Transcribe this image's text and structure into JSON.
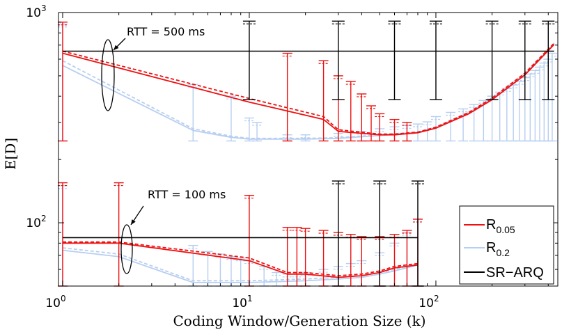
{
  "chart_data": {
    "type": "line",
    "xlabel": "Coding Window/Generation Size (k)",
    "ylabel": "E[D]",
    "xscale": "log",
    "yscale": "log",
    "xlim": [
      0.95,
      450
    ],
    "ylim": [
      50,
      1000
    ],
    "x_ticks": [
      "10^0",
      "10^1",
      "10^2"
    ],
    "y_ticks": [
      "10^2",
      "10^3"
    ],
    "legend": {
      "position": "bottom-right",
      "entries": [
        {
          "name": "R",
          "sub": "0.05",
          "color": "#ee1111"
        },
        {
          "name": "R",
          "sub": "0.2",
          "color": "#b6cef0"
        },
        {
          "name": "SR−ARQ",
          "sub": "",
          "color": "#000000"
        }
      ]
    },
    "annotations": [
      {
        "text": "RTT = 500 ms",
        "points_to_x": 1.7
      },
      {
        "text": "RTT = 100 ms",
        "points_to_x": 2.3
      }
    ],
    "groups": [
      {
        "name": "RTT = 500 ms",
        "floor": 245,
        "series": [
          {
            "name": "R_0.05",
            "color": "#ee1111",
            "style": "solid",
            "x": [
              1,
              10,
              25,
              30,
              50,
              60,
              80,
              100,
              150,
              200,
              300,
              430
            ],
            "y": [
              640,
              375,
              310,
              272,
              262,
              262,
              268,
              282,
              330,
              385,
              505,
              705
            ]
          },
          {
            "name": "R_0.05",
            "color": "#ee1111",
            "style": "dashed",
            "x": [
              1,
              10,
              25,
              30,
              50,
              60,
              80,
              100,
              150,
              200,
              300,
              430
            ],
            "y": [
              655,
              390,
              320,
              277,
              264,
              264,
              270,
              285,
              335,
              392,
              515,
              715
            ]
          },
          {
            "name": "R_0.2",
            "color": "#b6cef0",
            "style": "solid",
            "x": [
              1,
              5,
              8,
              10,
              20,
              30,
              50,
              80,
              100,
              150,
              200,
              300,
              430
            ],
            "y": [
              560,
              275,
              255,
              250,
              250,
              252,
              260,
              268,
              282,
              330,
              385,
              505,
              705
            ]
          },
          {
            "name": "R_0.2",
            "color": "#b6cef0",
            "style": "dashed",
            "x": [
              1,
              5,
              8,
              10,
              20,
              30,
              50,
              80,
              100,
              150,
              200,
              300,
              430
            ],
            "y": [
              590,
              280,
              258,
              252,
              252,
              254,
              262,
              270,
              285,
              335,
              392,
              515,
              715
            ]
          },
          {
            "name": "SR-ARQ",
            "color": "#000000",
            "style": "solid",
            "x": [
              1,
              430
            ],
            "y": [
              655,
              655
            ]
          }
        ],
        "error_bars": [
          {
            "series": "R_0.05",
            "x": [
              1,
              16,
              25,
              30,
              35,
              40,
              45,
              50,
              60,
              70
            ],
            "top": [
              900,
              640,
              590,
              500,
              470,
              410,
              360,
              330,
              310,
              300
            ]
          },
          {
            "series": "R_0.2",
            "x": [
              1,
              5,
              8,
              10,
              11,
              16,
              20,
              30,
              40,
              50,
              60,
              70,
              80,
              90,
              100,
              120,
              140,
              160,
              180,
              200,
              220,
              240,
              260,
              280,
              300,
              320,
              340,
              360,
              380,
              400,
              420
            ],
            "top": [
              880,
              455,
              400,
              315,
              300,
              262,
              262,
              266,
              272,
              280,
              286,
              290,
              295,
              302,
              320,
              335,
              348,
              365,
              382,
              400,
              418,
              435,
              452,
              470,
              490,
              510,
              530,
              550,
              575,
              600,
              640
            ]
          },
          {
            "series": "SR-ARQ",
            "x": [
              10,
              30,
              60,
              100,
              200,
              300,
              400
            ],
            "top": [
              910,
              910,
              910,
              910,
              910,
              910,
              910
            ],
            "bottom": [
              385,
              385,
              385,
              385,
              385,
              385,
              385
            ]
          }
        ]
      },
      {
        "name": "RTT = 100 ms",
        "floor": 50,
        "series": [
          {
            "name": "R_0.05",
            "color": "#ee1111",
            "style": "solid",
            "x": [
              1,
              2,
              10,
              16,
              20,
              30,
              40,
              50,
              60,
              80
            ],
            "y": [
              80,
              80,
              66,
              57,
              57,
              55,
              56,
              58,
              61,
              63
            ]
          },
          {
            "name": "R_0.05",
            "color": "#ee1111",
            "style": "dashed",
            "x": [
              1,
              2,
              10,
              16,
              20,
              30,
              40,
              50,
              60,
              80
            ],
            "y": [
              81,
              81,
              68,
              58,
              58,
              56,
              57,
              59,
              62,
              64
            ]
          },
          {
            "name": "R_0.2",
            "color": "#b6cef0",
            "style": "solid",
            "x": [
              1,
              2,
              5,
              10,
              20,
              30,
              40,
              50,
              60,
              80
            ],
            "y": [
              74,
              69,
              52,
              52,
              53,
              54,
              55,
              57,
              59,
              63
            ]
          },
          {
            "name": "R_0.2",
            "color": "#b6cef0",
            "style": "dashed",
            "x": [
              1,
              2,
              5,
              10,
              20,
              30,
              40,
              50,
              60,
              80
            ],
            "y": [
              76,
              71,
              53,
              53,
              54,
              55,
              56,
              58,
              60,
              64
            ]
          },
          {
            "name": "SR-ARQ",
            "color": "#000000",
            "style": "solid",
            "x": [
              1,
              80
            ],
            "y": [
              85,
              85
            ]
          }
        ],
        "error_bars": [
          {
            "series": "R_0.05",
            "x": [
              1,
              2,
              10,
              16,
              18,
              20,
              25,
              30,
              35,
              40,
              50,
              60,
              70,
              80
            ],
            "top": [
              155,
              155,
              135,
              95,
              95,
              94,
              92,
              90,
              88,
              86,
              86,
              88,
              92,
              104
            ]
          },
          {
            "series": "R_0.2",
            "x": [
              1,
              5,
              6,
              7,
              8,
              9,
              10,
              12,
              14,
              16,
              18,
              20,
              25,
              30,
              35,
              40,
              50,
              60,
              70,
              80
            ],
            "top": [
              150,
              78,
              73,
              71,
              69,
              68,
              66,
              62,
              58,
              57,
              57,
              58,
              60,
              62,
              64,
              66,
              72,
              80,
              90,
              104
            ]
          },
          {
            "series": "SR-ARQ",
            "x": [
              30,
              50,
              80
            ],
            "top": [
              158,
              158,
              158
            ],
            "bottom": [
              50,
              50,
              50
            ]
          }
        ]
      }
    ]
  }
}
